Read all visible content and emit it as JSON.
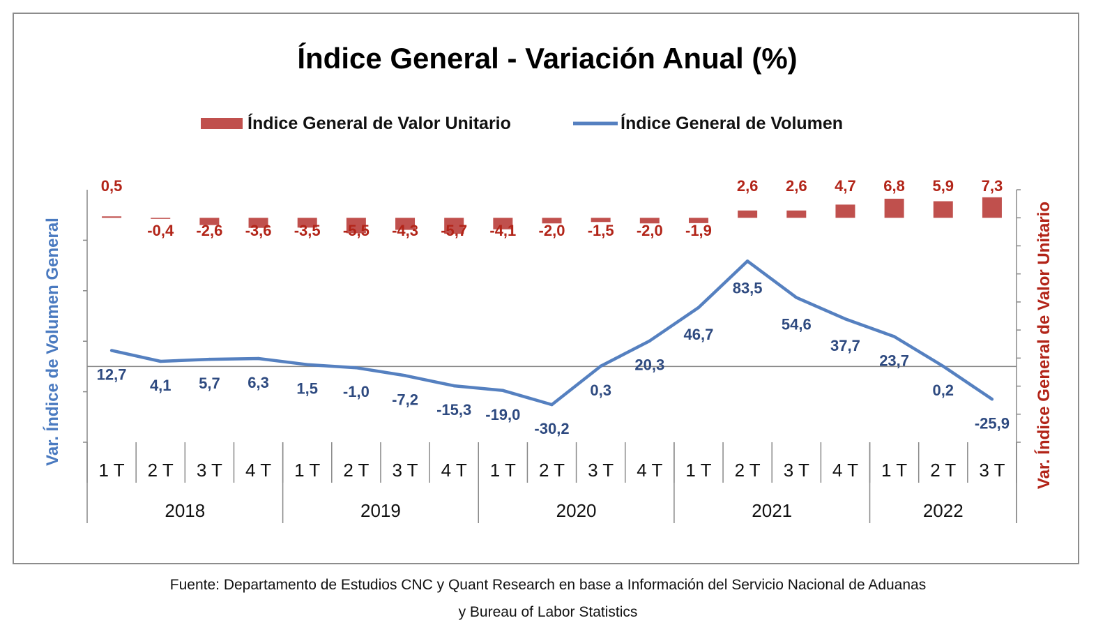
{
  "chart_data": {
    "type": "bar+line",
    "title": "Índice General - Variación Anual (%)",
    "legend": {
      "placement": "top",
      "items": [
        {
          "label": "Índice General de Valor Unitario",
          "kind": "bar"
        },
        {
          "label": "Índice General de Volumen",
          "kind": "line"
        }
      ]
    },
    "y_left_label": "Var. Índice de Volumen General",
    "y_right_label": "Var. Índice General de Valor Unitario",
    "quarters": [
      "1 T",
      "2 T",
      "3 T",
      "4 T",
      "1 T",
      "2 T",
      "3 T",
      "4 T",
      "1 T",
      "2 T",
      "3 T",
      "4 T",
      "1 T",
      "2 T",
      "3 T",
      "4 T",
      "1 T",
      "2 T",
      "3 T"
    ],
    "years": [
      {
        "label": "2018",
        "count": 4
      },
      {
        "label": "2019",
        "count": 4
      },
      {
        "label": "2020",
        "count": 4
      },
      {
        "label": "2021",
        "count": 4
      },
      {
        "label": "2022",
        "count": 3
      }
    ],
    "series": [
      {
        "name": "Índice General de Valor Unitario",
        "axis": "right",
        "color": "#c0504d",
        "label_color": "#b22418",
        "values": [
          0.5,
          -0.4,
          -2.6,
          -3.6,
          -3.5,
          -5.5,
          -4.3,
          -5.7,
          -4.1,
          -2.0,
          -1.5,
          -2.0,
          -1.9,
          2.6,
          2.6,
          4.7,
          6.8,
          5.9,
          7.3
        ],
        "labels": [
          "0,5",
          "-0,4",
          "-2,6",
          "-3,6",
          "-3,5",
          "-5,5",
          "-4,3",
          "-5,7",
          "-4,1",
          "-2,0",
          "-1,5",
          "-2,0",
          "-1,9",
          "2,6",
          "2,6",
          "4,7",
          "6,8",
          "5,9",
          "7,3"
        ]
      },
      {
        "name": "Índice General de Volumen",
        "axis": "left",
        "color": "#5580c0",
        "label_color": "#2e4a80",
        "values": [
          12.7,
          4.1,
          5.7,
          6.3,
          1.5,
          -1.0,
          -7.2,
          -15.3,
          -19.0,
          -30.2,
          0.3,
          20.3,
          46.7,
          83.5,
          54.6,
          37.7,
          23.7,
          0.2,
          -25.9
        ],
        "labels": [
          "12,7",
          "4,1",
          "5,7",
          "6,3",
          "1,5",
          "-1,0",
          "-7,2",
          "-15,3",
          "-19,0",
          "-30,2",
          "0,3",
          "20,3",
          "46,7",
          "83,5",
          "54,6",
          "37,7",
          "23,7",
          "0,2",
          "-25,9"
        ]
      }
    ],
    "y_left_lim": [
      -60,
      140
    ],
    "y_right_lim": [
      -80,
      10
    ],
    "grid": false
  },
  "source_lines": [
    "Fuente: Departamento de Estudios CNC y Quant Research en base a Información del Servicio Nacional de Aduanas",
    "y Bureau of Labor Statistics"
  ]
}
